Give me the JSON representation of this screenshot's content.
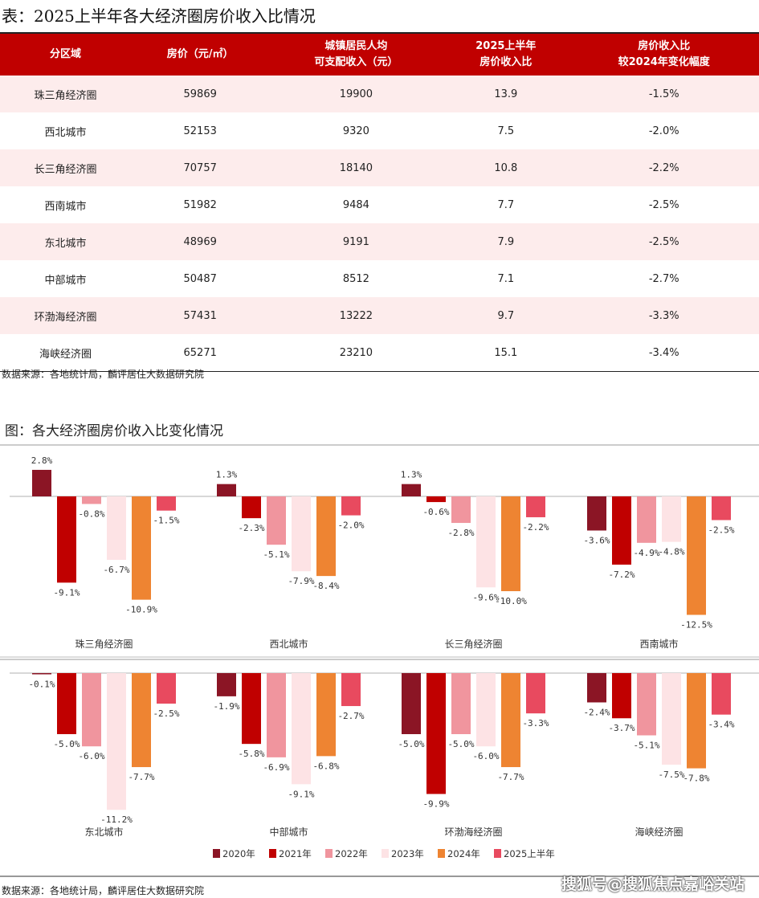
{
  "table_title": "表：2025上半年各大经济圈房价收入比情况",
  "table": {
    "headers": [
      "分区域",
      "房价（元/㎡）",
      "城镇居民人均\n可支配收入（元）",
      "2025上半年\n房价收入比",
      "房价收入比\n较2024年变化幅度"
    ],
    "rows": [
      [
        "珠三角经济圈",
        "59869",
        "19900",
        "13.9",
        "-1.5%"
      ],
      [
        "西北城市",
        "52153",
        "9320",
        "7.5",
        "-2.0%"
      ],
      [
        "长三角经济圈",
        "70757",
        "18140",
        "10.8",
        "-2.2%"
      ],
      [
        "西南城市",
        "51982",
        "9484",
        "7.7",
        "-2.5%"
      ],
      [
        "东北城市",
        "48969",
        "9191",
        "7.9",
        "-2.5%"
      ],
      [
        "中部城市",
        "50487",
        "8512",
        "7.1",
        "-2.7%"
      ],
      [
        "环渤海经济圈",
        "57431",
        "13222",
        "9.7",
        "-3.3%"
      ],
      [
        "海峡经济圈",
        "65271",
        "23210",
        "15.1",
        "-3.4%"
      ]
    ],
    "header_color": "#c00000",
    "alt_row_color": "#fdecec"
  },
  "table_source": "数据来源：各地统计局，麟评居住大数据研究院",
  "chart_title": "图：各大经济圈房价收入比变化情况",
  "chart_source": "数据来源：各地统计局，麟评居住大数据研究院",
  "watermark": "搜狐号@搜狐焦点嘉峪关站",
  "chart_data": {
    "type": "bar",
    "series_names": [
      "2020年",
      "2021年",
      "2022年",
      "2023年",
      "2024年",
      "2025上半年"
    ],
    "series_colors": [
      "#8b1525",
      "#c00000",
      "#f0959e",
      "#fde3e5",
      "#ee8432",
      "#e84a5f"
    ],
    "unit": "%",
    "legend": "bottom",
    "panels": [
      {
        "categories": [
          "珠三角经济圈",
          "西北城市",
          "长三角经济圈",
          "西南城市"
        ],
        "values": [
          [
            2.8,
            -9.1,
            -0.8,
            -6.7,
            -10.9,
            -1.5
          ],
          [
            1.3,
            -2.3,
            -5.1,
            -7.9,
            -8.4,
            -2.0
          ],
          [
            1.3,
            -0.6,
            -2.8,
            -9.6,
            -10.0,
            -2.2
          ],
          [
            -3.6,
            -7.2,
            -4.9,
            -4.8,
            -12.5,
            -2.5
          ]
        ]
      },
      {
        "categories": [
          "东北城市",
          "中部城市",
          "环渤海经济圈",
          "海峡经济圈"
        ],
        "values": [
          [
            -0.1,
            -5.0,
            -6.0,
            -11.2,
            -7.7,
            -2.5
          ],
          [
            -1.9,
            -5.8,
            -6.9,
            -9.1,
            -6.8,
            -2.7
          ],
          [
            -5.0,
            -9.9,
            -5.0,
            -6.0,
            -7.7,
            -3.3
          ],
          [
            -2.4,
            -3.7,
            -5.1,
            -7.5,
            -7.8,
            -3.4
          ]
        ]
      }
    ]
  }
}
